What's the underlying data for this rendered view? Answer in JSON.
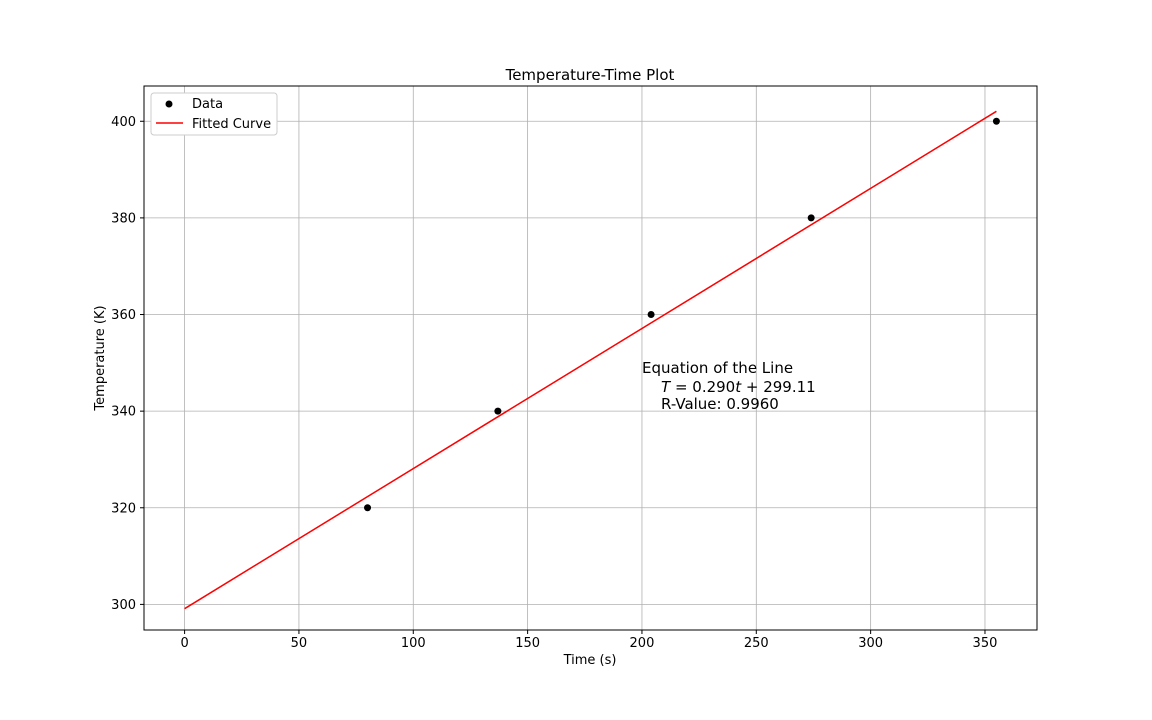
{
  "chart_data": {
    "type": "scatter",
    "title": "Temperature-Time Plot",
    "xlabel": "Time (s)",
    "ylabel": "Temperature (K)",
    "xlim": [
      -17.75,
      372.75
    ],
    "ylim": [
      294.7,
      407.3
    ],
    "xticks": [
      0,
      50,
      100,
      150,
      200,
      250,
      300,
      350
    ],
    "yticks": [
      300,
      320,
      340,
      360,
      380,
      400
    ],
    "grid": true,
    "legend_position": "top-left",
    "series": [
      {
        "name": "Data",
        "kind": "scatter",
        "color": "#000000",
        "x": [
          80,
          137,
          204,
          274,
          355
        ],
        "y": [
          320,
          340,
          360,
          380,
          400
        ]
      },
      {
        "name": "Fitted Curve",
        "kind": "line",
        "color": "#ff0000",
        "x": [
          0,
          355
        ],
        "y": [
          299.11,
          402.06
        ]
      }
    ],
    "annotation": {
      "line1": "Equation of the Line",
      "line2_var": "T",
      "line2_mid": " = 0.290",
      "line2_var2": "t",
      "line2_end": " + 299.11",
      "line3": "R-Value: 0.9960"
    }
  }
}
